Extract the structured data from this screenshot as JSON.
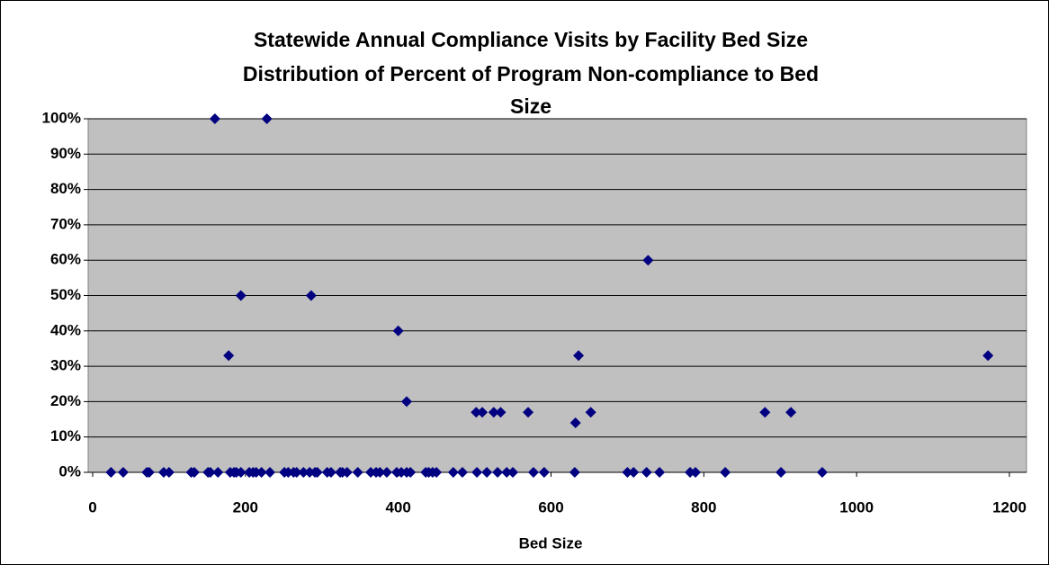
{
  "chart_data": {
    "type": "scatter",
    "title": [
      "Statewide Annual Compliance Visits by Facility Bed Size",
      "Distribution of Percent of Program Non-compliance to Bed",
      "Size"
    ],
    "x_label": "Bed Size",
    "color": "#000080",
    "xlim": [
      0,
      1200
    ],
    "xticks": [
      0,
      200,
      400,
      600,
      800,
      1000,
      1200
    ],
    "ylim": [
      0,
      100
    ],
    "yticks": [
      {
        "value": 0,
        "label": "0%"
      },
      {
        "value": 10,
        "label": "10%"
      },
      {
        "value": 20,
        "label": "20%"
      },
      {
        "value": 30,
        "label": "30%"
      },
      {
        "value": 40,
        "label": "40%"
      },
      {
        "value": 50,
        "label": "50%"
      },
      {
        "value": 60,
        "label": "60%"
      },
      {
        "value": 70,
        "label": "70%"
      },
      {
        "value": 80,
        "label": "80%"
      },
      {
        "value": 90,
        "label": "90%"
      },
      {
        "value": 100,
        "label": "100%"
      }
    ],
    "grid": true,
    "x": [
      160,
      228,
      194,
      286,
      178,
      400,
      411,
      502,
      510,
      525,
      534,
      570,
      632,
      636,
      652,
      727,
      880,
      914,
      1172,
      24,
      40,
      71,
      74,
      93,
      100,
      129,
      133,
      151,
      154,
      164,
      180,
      185,
      188,
      194,
      205,
      210,
      214,
      221,
      232,
      251,
      256,
      263,
      267,
      276,
      284,
      291,
      294,
      307,
      312,
      324,
      327,
      333,
      347,
      364,
      371,
      376,
      385,
      398,
      404,
      411,
      416,
      436,
      440,
      445,
      450,
      472,
      484,
      503,
      516,
      530,
      542,
      550,
      577,
      591,
      631,
      700,
      708,
      725,
      742,
      782,
      789,
      828,
      901,
      955
    ],
    "values": [
      100,
      100,
      50,
      50,
      33,
      40,
      20,
      17,
      17,
      17,
      17,
      17,
      14,
      33,
      17,
      60,
      17,
      17,
      33,
      0,
      0,
      0,
      0,
      0,
      0,
      0,
      0,
      0,
      0,
      0,
      0,
      0,
      0,
      0,
      0,
      0,
      0,
      0,
      0,
      0,
      0,
      0,
      0,
      0,
      0,
      0,
      0,
      0,
      0,
      0,
      0,
      0,
      0,
      0,
      0,
      0,
      0,
      0,
      0,
      0,
      0,
      0,
      0,
      0,
      0,
      0,
      0,
      0,
      0,
      0,
      0,
      0,
      0,
      0,
      0,
      0,
      0,
      0,
      0,
      0,
      0,
      0,
      0,
      0
    ]
  }
}
